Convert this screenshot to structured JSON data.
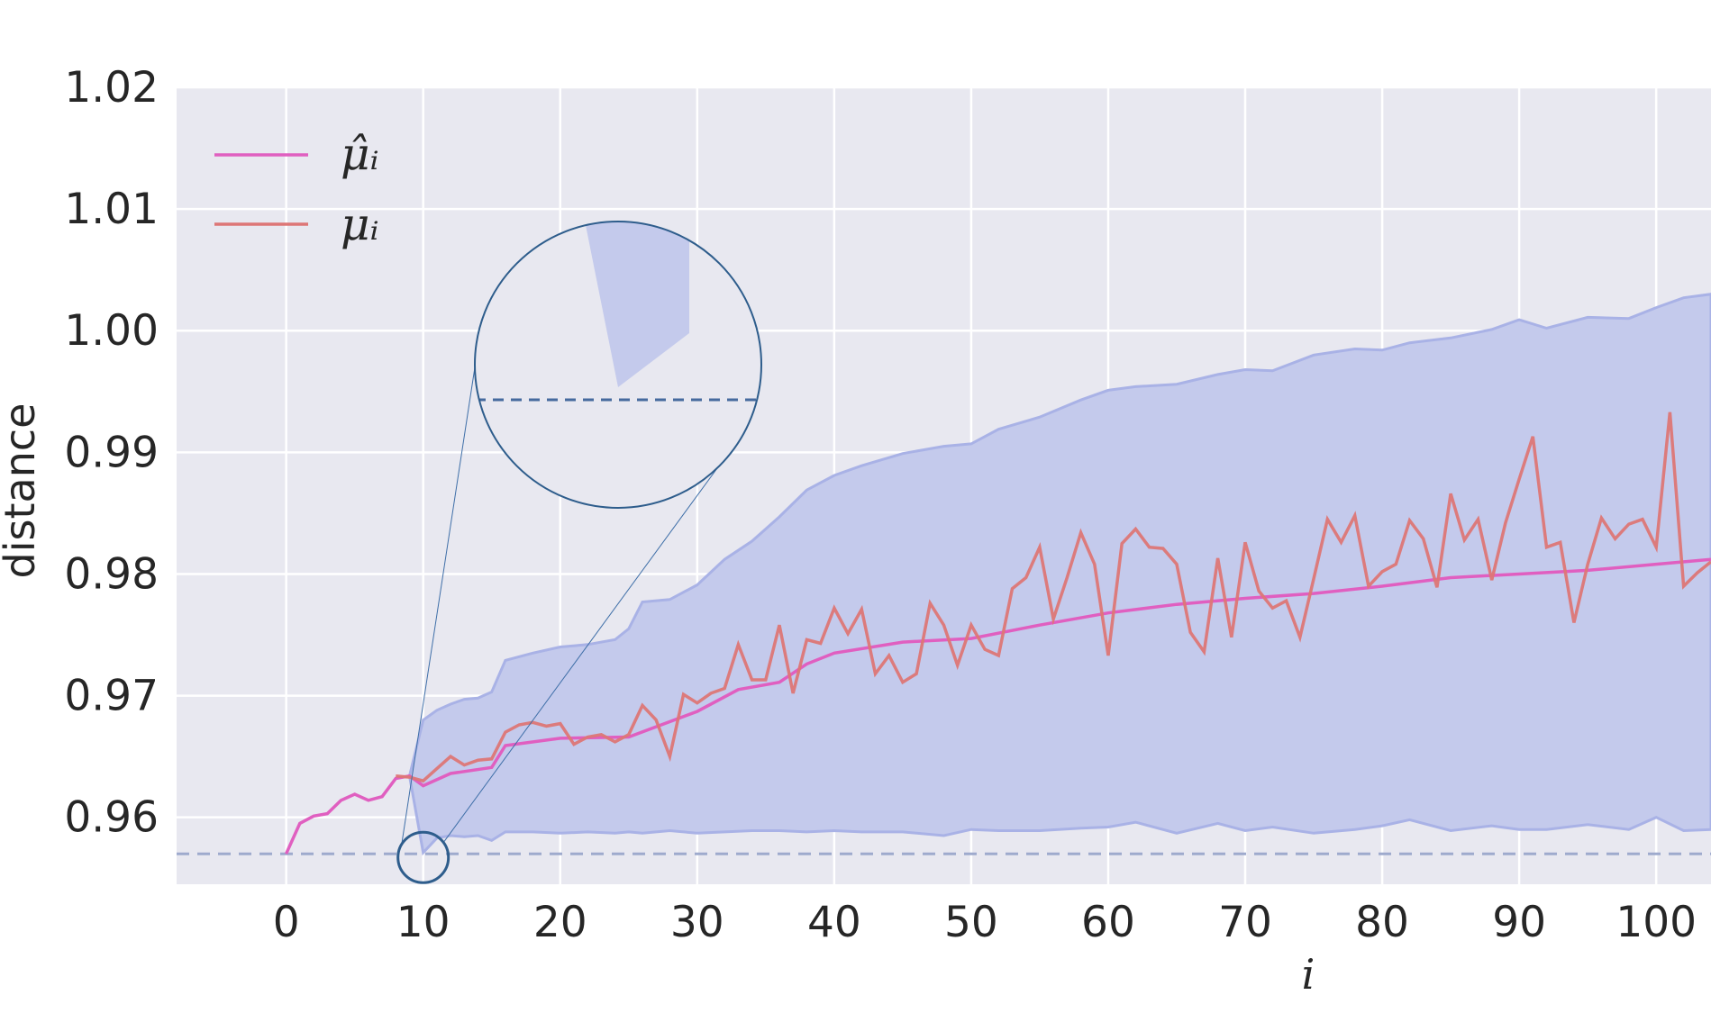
{
  "chart_data": {
    "type": "line",
    "title": "",
    "xlabel": "i",
    "ylabel": "distance",
    "xlim": [
      -8,
      104
    ],
    "ylim": [
      0.9545,
      1.02
    ],
    "x_ticks": [
      "0",
      "10",
      "20",
      "30",
      "40",
      "50",
      "60",
      "70",
      "80",
      "90",
      "100"
    ],
    "y_ticks": [
      "0.96",
      "0.97",
      "0.98",
      "0.99",
      "1.00",
      "1.01",
      "1.02"
    ],
    "grid": true,
    "legend_position": "top-left",
    "reference_line": {
      "y": 0.957,
      "style": "dashed"
    },
    "inset_zoom": {
      "center_x": 10,
      "center_y": 0.9567,
      "shape": "circle"
    },
    "series": [
      {
        "name": "μ̂ᵢ",
        "legend_label": "μ̂ᵢ",
        "color": "#e05fc0",
        "x": [
          0,
          1,
          2,
          3,
          4,
          5,
          6,
          7,
          8,
          9,
          10,
          12,
          15,
          16,
          20,
          25,
          30,
          33,
          36,
          38,
          40,
          45,
          50,
          55,
          60,
          65,
          70,
          75,
          80,
          85,
          90,
          95,
          100,
          104
        ],
        "values": [
          0.957,
          0.9595,
          0.9601,
          0.9603,
          0.9614,
          0.9619,
          0.9614,
          0.9617,
          0.9632,
          0.9634,
          0.9626,
          0.9636,
          0.9641,
          0.9659,
          0.9665,
          0.9666,
          0.9687,
          0.9705,
          0.9711,
          0.9726,
          0.9735,
          0.9744,
          0.9747,
          0.9758,
          0.9768,
          0.9775,
          0.978,
          0.9784,
          0.979,
          0.9797,
          0.98,
          0.9803,
          0.9808,
          0.9812
        ]
      },
      {
        "name": "μᵢ",
        "legend_label": "μᵢ",
        "color": "#dd7676",
        "x": [
          8,
          9,
          10,
          11,
          12,
          13,
          14,
          15,
          16,
          17,
          18,
          19,
          20,
          21,
          22,
          23,
          24,
          25,
          26,
          27,
          28,
          29,
          30,
          31,
          32,
          33,
          34,
          35,
          36,
          37,
          38,
          39,
          40,
          41,
          42,
          43,
          44,
          45,
          46,
          47,
          48,
          49,
          50,
          51,
          52,
          53,
          54,
          55,
          56,
          57,
          58,
          59,
          60,
          61,
          62,
          63,
          64,
          65,
          66,
          67,
          68,
          69,
          70,
          71,
          72,
          73,
          74,
          75,
          76,
          77,
          78,
          79,
          80,
          81,
          82,
          83,
          84,
          85,
          86,
          87,
          88,
          89,
          90,
          91,
          92,
          93,
          94,
          95,
          96,
          97,
          98,
          99,
          100,
          101,
          102,
          103,
          104
        ],
        "values": [
          0.9634,
          0.9633,
          0.963,
          0.964,
          0.965,
          0.9643,
          0.9647,
          0.9648,
          0.967,
          0.9676,
          0.9678,
          0.9675,
          0.9677,
          0.966,
          0.9666,
          0.9668,
          0.9662,
          0.9668,
          0.9692,
          0.968,
          0.965,
          0.9701,
          0.9694,
          0.9702,
          0.9706,
          0.9742,
          0.9713,
          0.9713,
          0.9758,
          0.9702,
          0.9746,
          0.9743,
          0.9772,
          0.9751,
          0.9771,
          0.9718,
          0.9733,
          0.9711,
          0.9718,
          0.9776,
          0.9758,
          0.9725,
          0.9758,
          0.9738,
          0.9733,
          0.9788,
          0.9797,
          0.9822,
          0.9763,
          0.9797,
          0.9834,
          0.9808,
          0.9733,
          0.9825,
          0.9837,
          0.9822,
          0.9821,
          0.9808,
          0.9752,
          0.9736,
          0.9813,
          0.9748,
          0.9826,
          0.9786,
          0.9772,
          0.9778,
          0.9748,
          0.9796,
          0.9845,
          0.9826,
          0.9848,
          0.979,
          0.9802,
          0.9808,
          0.9844,
          0.9829,
          0.9789,
          0.9866,
          0.9828,
          0.9845,
          0.9795,
          0.9842,
          0.9878,
          0.9913,
          0.9822,
          0.9826,
          0.976,
          0.9808,
          0.9846,
          0.9829,
          0.9841,
          0.9845,
          0.9822,
          0.9933,
          0.979,
          0.9801,
          0.981
        ]
      }
    ],
    "band": {
      "color": "#c4caec",
      "x": [
        0,
        1,
        2,
        3,
        4,
        5,
        6,
        7,
        8,
        9,
        10,
        11,
        12,
        13,
        14,
        15,
        16,
        18,
        20,
        22,
        24,
        25,
        26,
        28,
        30,
        32,
        34,
        36,
        38,
        40,
        42,
        45,
        48,
        50,
        52,
        55,
        58,
        60,
        62,
        65,
        68,
        70,
        72,
        75,
        78,
        80,
        82,
        85,
        88,
        90,
        92,
        95,
        98,
        100,
        102,
        104
      ],
      "upper": [
        0.957,
        0.9595,
        0.9601,
        0.9603,
        0.9614,
        0.9619,
        0.9614,
        0.9617,
        0.9632,
        0.9634,
        0.968,
        0.9688,
        0.9693,
        0.9697,
        0.9698,
        0.9703,
        0.9729,
        0.9735,
        0.974,
        0.9742,
        0.9746,
        0.9755,
        0.9777,
        0.9779,
        0.9791,
        0.9812,
        0.9827,
        0.9847,
        0.9869,
        0.9881,
        0.9889,
        0.9899,
        0.9905,
        0.9907,
        0.9919,
        0.9929,
        0.9943,
        0.9951,
        0.9954,
        0.9956,
        0.9964,
        0.9968,
        0.9967,
        0.998,
        0.9985,
        0.9984,
        0.999,
        0.9994,
        1.0001,
        1.0009,
        1.0002,
        1.0011,
        1.001,
        1.0019,
        1.0027,
        1.003
      ],
      "lower": [
        0.957,
        0.9595,
        0.9601,
        0.9603,
        0.9614,
        0.9619,
        0.9614,
        0.9617,
        0.9632,
        0.9634,
        0.9571,
        0.9583,
        0.9585,
        0.9584,
        0.9585,
        0.9581,
        0.9588,
        0.9588,
        0.9587,
        0.9588,
        0.9587,
        0.9588,
        0.9587,
        0.9589,
        0.9587,
        0.9588,
        0.9589,
        0.9589,
        0.9588,
        0.9589,
        0.9588,
        0.9588,
        0.9585,
        0.959,
        0.9589,
        0.9589,
        0.9591,
        0.9592,
        0.9596,
        0.9587,
        0.9595,
        0.9589,
        0.9592,
        0.9587,
        0.959,
        0.9593,
        0.9598,
        0.9589,
        0.9593,
        0.959,
        0.959,
        0.9594,
        0.959,
        0.96,
        0.9589,
        0.959
      ]
    }
  }
}
